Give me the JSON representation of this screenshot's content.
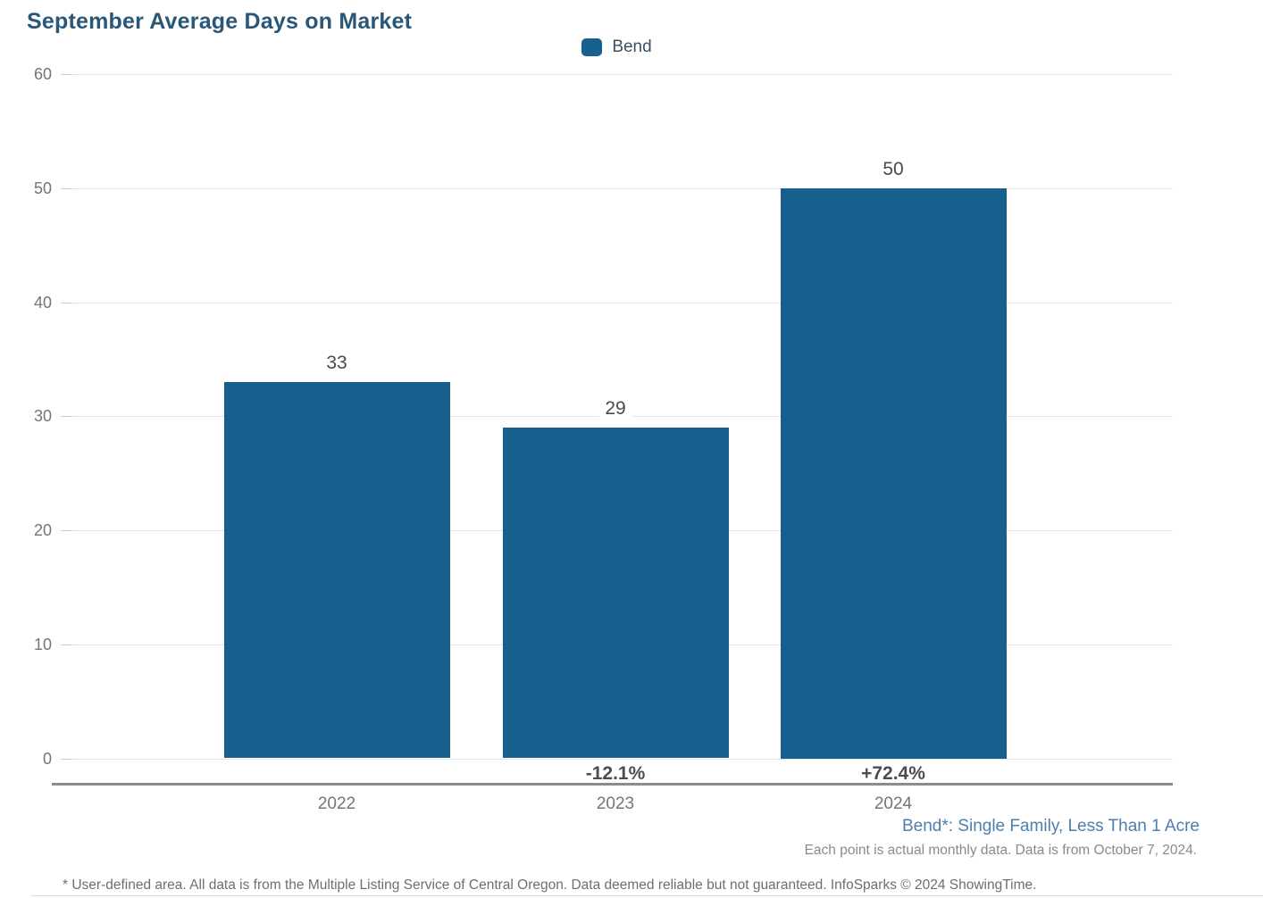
{
  "title": "September Average Days on Market",
  "legend": {
    "label": "Bend",
    "swatch_color": "#17608e"
  },
  "chart_data": {
    "type": "bar",
    "title": "September Average Days on Market",
    "categories": [
      "2022",
      "2023",
      "2024"
    ],
    "series": [
      {
        "name": "Bend",
        "values": [
          33,
          29,
          50
        ]
      }
    ],
    "value_labels": [
      "33",
      "29",
      "50"
    ],
    "change_labels": [
      "",
      "-12.1%",
      "+72.4%"
    ],
    "ylim": [
      0,
      60
    ],
    "yticks": [
      0,
      10,
      20,
      30,
      40,
      50,
      60
    ],
    "bar_color": "#17608e",
    "grid": true,
    "legend_position": "top-center",
    "xlabel": "",
    "ylabel": ""
  },
  "footnotes": {
    "series_definition": "Bend*: Single Family, Less Than 1 Acre",
    "data_note": "Each point is actual monthly data. Data is from October 7, 2024.",
    "disclaimer": "* User-defined area. All data is from the Multiple Listing Service of Central Oregon. Data deemed reliable but not guaranteed. InfoSparks © 2024 ShowingTime."
  }
}
